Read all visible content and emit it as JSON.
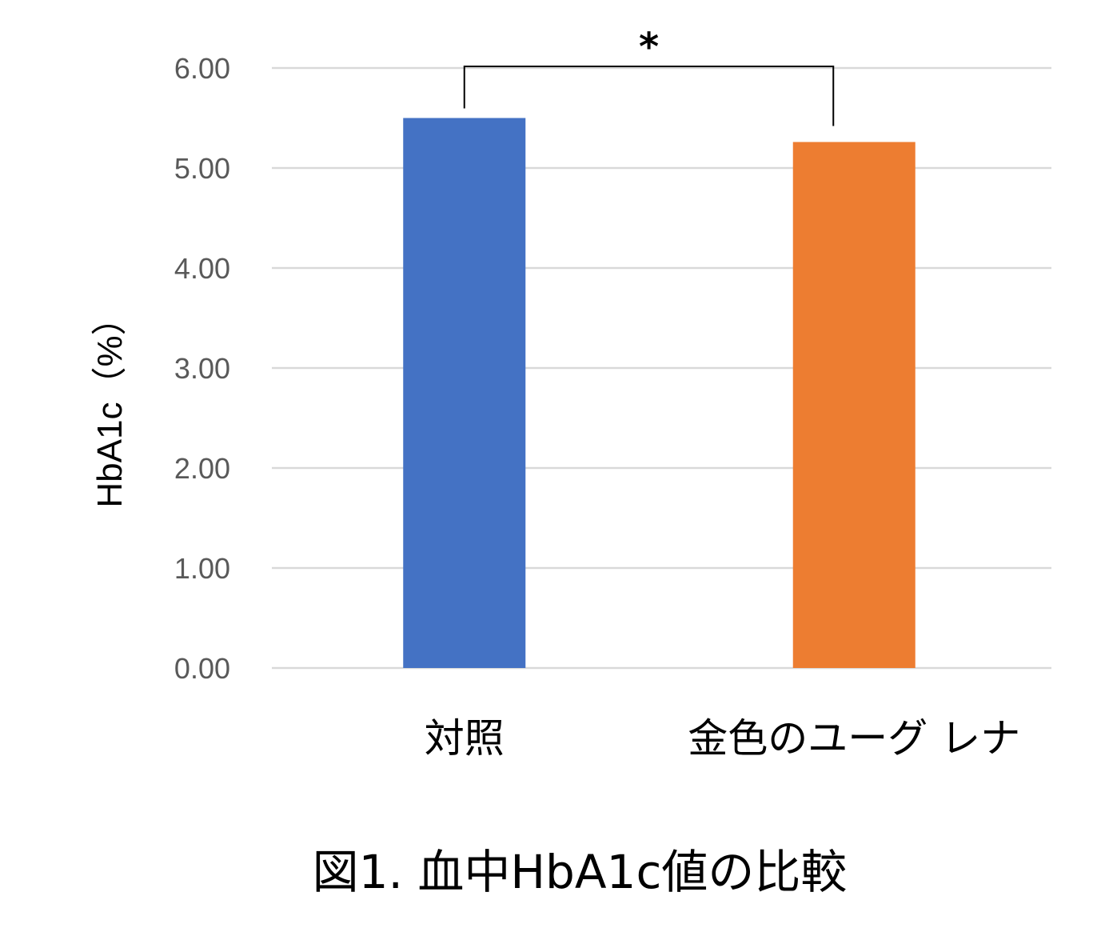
{
  "chart_data": {
    "type": "bar",
    "categories": [
      "対照",
      "金色のユーグ レナ"
    ],
    "values": [
      5.5,
      5.26
    ],
    "colors": [
      "#4472C4",
      "#ED7D31"
    ],
    "ylabel": "HbA1c（%）",
    "ylim": [
      0,
      6
    ],
    "yticks": [
      "0.00",
      "1.00",
      "2.00",
      "3.00",
      "4.00",
      "5.00",
      "6.00"
    ],
    "grid": true,
    "annotation": "*",
    "title": "図1. 血中HbA1c値の比較"
  }
}
